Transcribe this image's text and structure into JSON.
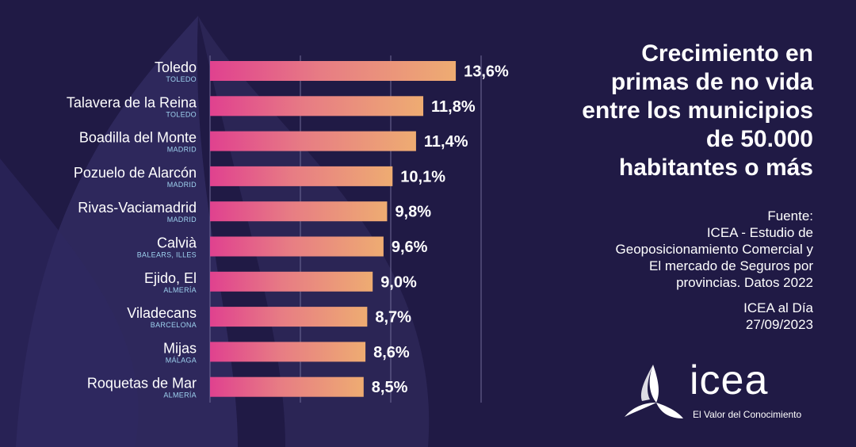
{
  "title_lines": [
    "Crecimiento en",
    "primas de no vida",
    "entre los municipios",
    "de 50.000",
    "habitantes o más"
  ],
  "source": {
    "heading": "Fuente:",
    "lines": [
      "ICEA - Estudio de",
      "Geoposicionamiento Comercial y",
      "El mercado de Seguros por",
      "provincias. Datos 2022"
    ]
  },
  "credit": {
    "line1": "ICEA al Día",
    "line2": "27/09/2023"
  },
  "logo": {
    "name": "icea",
    "tagline": "El Valor del Conocimiento"
  },
  "colors": {
    "background": "#201a45",
    "bar_start": "#e0418f",
    "bar_end": "#eeac72",
    "region_text": "#9fd3f0"
  },
  "chart_data": {
    "type": "bar",
    "orientation": "horizontal",
    "categories": [
      "Toledo",
      "Talavera de la Reina",
      "Boadilla del Monte",
      "Pozuelo de Alarcón",
      "Rivas-Vaciamadrid",
      "Calvià",
      "Ejido, El",
      "Viladecans",
      "Mijas",
      "Roquetas de Mar"
    ],
    "regions": [
      "TOLEDO",
      "TOLEDO",
      "MADRID",
      "MADRID",
      "MADRID",
      "BALEARS, ILLES",
      "ALMERÍA",
      "BARCELONA",
      "MÁLAGA",
      "ALMERÍA"
    ],
    "values": [
      13.6,
      11.8,
      11.4,
      10.1,
      9.8,
      9.6,
      9.0,
      8.7,
      8.6,
      8.5
    ],
    "value_labels": [
      "13,6%",
      "11,8%",
      "11,4%",
      "10,1%",
      "9,8%",
      "9,6%",
      "9,0%",
      "8,7%",
      "8,6%",
      "8,5%"
    ],
    "xlim": [
      0,
      15
    ],
    "grid": true
  }
}
